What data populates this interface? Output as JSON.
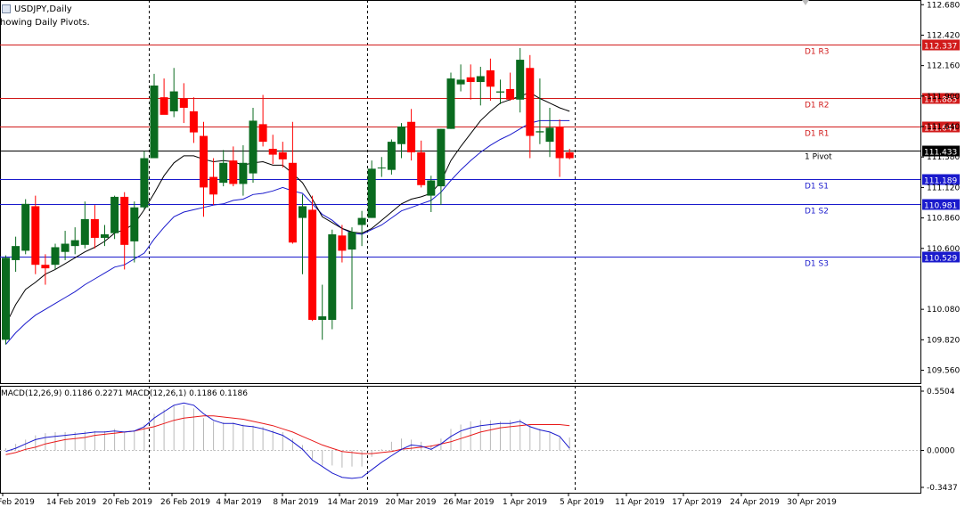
{
  "symbol_label": "USDJPY,Daily",
  "indicator_note": "howing Daily Pivots.",
  "colors": {
    "bull": "#0a6b1f",
    "bear": "#ff0000",
    "pivot_resistance": "#d11a1a",
    "pivot_support": "#1a1acc",
    "pivot_main": "#000000",
    "ma_fast": "#000000",
    "ma_slow": "#1a1acc",
    "macd_line": "#1a1acc",
    "signal_line": "#e81a1a",
    "hist": "#b8b8b8"
  },
  "price_axis_labels": [
    "112.680",
    "112.420",
    "112.160",
    "111.900",
    "111.640",
    "111.380",
    "111.120",
    "110.860",
    "110.600",
    "110.080",
    "109.820",
    "109.560"
  ],
  "macd_axis_labels": [
    "0.5504",
    "0.0000",
    "-0.3437"
  ],
  "macd_label": "MACD(12,26,9) 0.1186 0.2271 MACD(12,26,1) 0.1186 0.1186",
  "date_labels": [
    "Feb 2019",
    "14 Feb 2019",
    "20 Feb 2019",
    "26 Feb 2019",
    "4 Mar 2019",
    "8 Mar 2019",
    "14 Mar 2019",
    "20 Mar 2019",
    "26 Mar 2019",
    "1 Apr 2019",
    "5 Apr 2019",
    "11 Apr 2019",
    "17 Apr 2019",
    "24 Apr 2019",
    "30 Apr 2019"
  ],
  "chart_data": {
    "type": "candlestick",
    "title": "USDJPY,Daily",
    "ylim": [
      109.45,
      112.72
    ],
    "candles": [
      {
        "o": 109.82,
        "h": 110.54,
        "l": 109.78,
        "c": 110.52
      },
      {
        "o": 110.5,
        "h": 110.7,
        "l": 110.4,
        "c": 110.62
      },
      {
        "o": 110.58,
        "h": 111.02,
        "l": 110.55,
        "c": 110.98
      },
      {
        "o": 110.96,
        "h": 111.05,
        "l": 110.38,
        "c": 110.46
      },
      {
        "o": 110.46,
        "h": 110.55,
        "l": 110.29,
        "c": 110.43
      },
      {
        "o": 110.46,
        "h": 110.64,
        "l": 110.42,
        "c": 110.61
      },
      {
        "o": 110.57,
        "h": 110.75,
        "l": 110.5,
        "c": 110.64
      },
      {
        "o": 110.62,
        "h": 110.78,
        "l": 110.55,
        "c": 110.67
      },
      {
        "o": 110.63,
        "h": 111.0,
        "l": 110.6,
        "c": 110.85
      },
      {
        "o": 110.85,
        "h": 110.97,
        "l": 110.6,
        "c": 110.69
      },
      {
        "o": 110.69,
        "h": 110.8,
        "l": 110.62,
        "c": 110.72
      },
      {
        "o": 110.73,
        "h": 111.05,
        "l": 110.68,
        "c": 111.04
      },
      {
        "o": 111.04,
        "h": 111.08,
        "l": 110.42,
        "c": 110.63
      },
      {
        "o": 110.66,
        "h": 111.0,
        "l": 110.48,
        "c": 110.95
      },
      {
        "o": 110.95,
        "h": 111.43,
        "l": 110.93,
        "c": 111.37
      },
      {
        "o": 111.37,
        "h": 112.09,
        "l": 111.37,
        "c": 111.99
      },
      {
        "o": 111.89,
        "h": 112.05,
        "l": 111.75,
        "c": 111.74
      },
      {
        "o": 111.77,
        "h": 112.14,
        "l": 111.72,
        "c": 111.94
      },
      {
        "o": 111.88,
        "h": 112.01,
        "l": 111.67,
        "c": 111.8
      },
      {
        "o": 111.77,
        "h": 111.89,
        "l": 111.5,
        "c": 111.59
      },
      {
        "o": 111.56,
        "h": 111.68,
        "l": 110.87,
        "c": 111.12
      },
      {
        "o": 111.21,
        "h": 111.37,
        "l": 110.97,
        "c": 111.06
      },
      {
        "o": 111.16,
        "h": 111.44,
        "l": 111.13,
        "c": 111.33
      },
      {
        "o": 111.35,
        "h": 111.47,
        "l": 111.13,
        "c": 111.15
      },
      {
        "o": 111.15,
        "h": 111.48,
        "l": 111.05,
        "c": 111.33
      },
      {
        "o": 111.24,
        "h": 111.8,
        "l": 111.16,
        "c": 111.69
      },
      {
        "o": 111.66,
        "h": 111.91,
        "l": 111.47,
        "c": 111.51
      },
      {
        "o": 111.45,
        "h": 111.57,
        "l": 111.32,
        "c": 111.4
      },
      {
        "o": 111.42,
        "h": 111.51,
        "l": 111.29,
        "c": 111.36
      },
      {
        "o": 111.33,
        "h": 111.68,
        "l": 110.64,
        "c": 110.65
      },
      {
        "o": 110.86,
        "h": 111.06,
        "l": 110.38,
        "c": 110.96
      },
      {
        "o": 110.93,
        "h": 111.05,
        "l": 109.98,
        "c": 109.99
      },
      {
        "o": 109.99,
        "h": 110.29,
        "l": 109.82,
        "c": 110.02
      },
      {
        "o": 109.99,
        "h": 110.76,
        "l": 109.91,
        "c": 110.72
      },
      {
        "o": 110.71,
        "h": 110.8,
        "l": 110.48,
        "c": 110.58
      },
      {
        "o": 110.59,
        "h": 110.78,
        "l": 110.08,
        "c": 110.74
      },
      {
        "o": 110.8,
        "h": 110.92,
        "l": 110.62,
        "c": 110.86
      },
      {
        "o": 110.86,
        "h": 111.35,
        "l": 110.86,
        "c": 111.28
      },
      {
        "o": 111.29,
        "h": 111.38,
        "l": 111.21,
        "c": 111.29
      },
      {
        "o": 111.27,
        "h": 111.53,
        "l": 111.23,
        "c": 111.51
      },
      {
        "o": 111.49,
        "h": 111.67,
        "l": 111.37,
        "c": 111.64
      },
      {
        "o": 111.68,
        "h": 111.79,
        "l": 111.35,
        "c": 111.42
      },
      {
        "o": 111.42,
        "h": 111.52,
        "l": 111.12,
        "c": 111.14
      },
      {
        "o": 111.05,
        "h": 111.22,
        "l": 110.91,
        "c": 111.18
      },
      {
        "o": 111.13,
        "h": 111.62,
        "l": 110.97,
        "c": 111.62
      },
      {
        "o": 111.62,
        "h": 112.1,
        "l": 111.62,
        "c": 112.05
      },
      {
        "o": 112.0,
        "h": 112.17,
        "l": 111.94,
        "c": 112.04
      },
      {
        "o": 112.06,
        "h": 112.17,
        "l": 111.87,
        "c": 112.02
      },
      {
        "o": 112.02,
        "h": 112.15,
        "l": 111.82,
        "c": 112.07
      },
      {
        "o": 112.12,
        "h": 112.22,
        "l": 111.86,
        "c": 111.98
      },
      {
        "o": 111.93,
        "h": 112.04,
        "l": 111.83,
        "c": 111.94
      },
      {
        "o": 111.96,
        "h": 112.1,
        "l": 111.86,
        "c": 111.87
      },
      {
        "o": 111.87,
        "h": 112.31,
        "l": 111.76,
        "c": 112.21
      },
      {
        "o": 112.14,
        "h": 112.25,
        "l": 111.37,
        "c": 111.56
      },
      {
        "o": 111.59,
        "h": 112.05,
        "l": 111.49,
        "c": 111.6
      },
      {
        "o": 111.51,
        "h": 111.8,
        "l": 111.38,
        "c": 111.63
      },
      {
        "o": 111.64,
        "h": 111.7,
        "l": 111.21,
        "c": 111.37
      },
      {
        "o": 111.42,
        "h": 111.45,
        "l": 111.36,
        "c": 111.37
      }
    ],
    "ma_fast": [
      109.95,
      110.12,
      110.25,
      110.31,
      110.38,
      110.42,
      110.47,
      110.52,
      110.57,
      110.61,
      110.66,
      110.73,
      110.76,
      110.81,
      110.93,
      111.07,
      111.22,
      111.33,
      111.39,
      111.39,
      111.36,
      111.34,
      111.35,
      111.34,
      111.31,
      111.33,
      111.34,
      111.31,
      111.31,
      111.24,
      111.16,
      111.02,
      110.87,
      110.82,
      110.77,
      110.74,
      110.73,
      110.77,
      110.84,
      110.91,
      110.98,
      111.02,
      111.04,
      111.07,
      111.17,
      111.35,
      111.47,
      111.58,
      111.69,
      111.77,
      111.84,
      111.87,
      111.9,
      111.93,
      111.88,
      111.84,
      111.8,
      111.77
    ],
    "ma_slow": [
      109.78,
      109.88,
      109.96,
      110.03,
      110.08,
      110.13,
      110.18,
      110.23,
      110.29,
      110.34,
      110.39,
      110.44,
      110.46,
      110.51,
      110.56,
      110.68,
      110.78,
      110.87,
      110.91,
      110.93,
      110.95,
      110.97,
      110.98,
      111.01,
      111.02,
      111.06,
      111.07,
      111.09,
      111.12,
      111.09,
      111.07,
      110.98,
      110.89,
      110.84,
      110.77,
      110.73,
      110.72,
      110.76,
      110.8,
      110.86,
      110.92,
      110.95,
      110.98,
      111.01,
      111.08,
      111.18,
      111.27,
      111.35,
      111.42,
      111.48,
      111.53,
      111.57,
      111.62,
      111.67,
      111.69,
      111.69,
      111.69,
      111.69
    ],
    "pivots": [
      {
        "name": "D1 R3",
        "value": 112.337,
        "label": "112.337",
        "kind": "resistance"
      },
      {
        "name": "D1 R2",
        "value": 111.885,
        "label": "111.885",
        "kind": "resistance"
      },
      {
        "name": "D1 R1",
        "value": 111.641,
        "label": "111.641",
        "kind": "resistance"
      },
      {
        "name": "D1 Pivot",
        "value": 111.433,
        "label": "111.433",
        "kind": "main"
      },
      {
        "name": "D1 S1",
        "value": 111.189,
        "label": "111.189",
        "kind": "support"
      },
      {
        "name": "D1 S2",
        "value": 110.981,
        "label": "110.981",
        "kind": "support"
      },
      {
        "name": "D1 S3",
        "value": 110.529,
        "label": "110.529",
        "kind": "support"
      }
    ],
    "pivot_text_labels": [
      "D1 R3",
      "D1 R2",
      "D1 R1",
      "1 Pivot",
      "D1 S1",
      "D1 S2",
      "D1 S3"
    ],
    "separators_after_index": [
      14,
      36,
      57
    ],
    "macd": {
      "ylim": [
        -0.3437,
        0.5504
      ],
      "histogram": [
        0.02,
        0.06,
        0.1,
        0.14,
        0.16,
        0.17,
        0.17,
        0.17,
        0.18,
        0.18,
        0.18,
        0.2,
        0.17,
        0.18,
        0.24,
        0.34,
        0.38,
        0.42,
        0.42,
        0.39,
        0.3,
        0.27,
        0.26,
        0.26,
        0.24,
        0.23,
        0.22,
        0.19,
        0.17,
        0.11,
        0.05,
        -0.08,
        -0.14,
        -0.14,
        -0.16,
        -0.15,
        -0.15,
        -0.06,
        0.01,
        0.08,
        0.11,
        0.1,
        0.08,
        0.05,
        0.11,
        0.2,
        0.24,
        0.27,
        0.28,
        0.28,
        0.27,
        0.28,
        0.29,
        0.24,
        0.2,
        0.17,
        0.12,
        0.12
      ],
      "macd_line": [
        -0.01,
        0.02,
        0.06,
        0.1,
        0.12,
        0.13,
        0.14,
        0.15,
        0.16,
        0.17,
        0.17,
        0.18,
        0.17,
        0.18,
        0.22,
        0.3,
        0.36,
        0.42,
        0.44,
        0.42,
        0.34,
        0.28,
        0.25,
        0.25,
        0.23,
        0.22,
        0.2,
        0.17,
        0.14,
        0.08,
        0.01,
        -0.09,
        -0.15,
        -0.21,
        -0.25,
        -0.26,
        -0.25,
        -0.18,
        -0.11,
        -0.05,
        0.01,
        0.05,
        0.04,
        0.01,
        0.06,
        0.13,
        0.18,
        0.21,
        0.23,
        0.24,
        0.25,
        0.25,
        0.27,
        0.22,
        0.19,
        0.17,
        0.13,
        0.02
      ],
      "signal_line": [
        -0.04,
        -0.02,
        0.01,
        0.03,
        0.06,
        0.08,
        0.1,
        0.11,
        0.12,
        0.14,
        0.15,
        0.16,
        0.17,
        0.18,
        0.2,
        0.22,
        0.25,
        0.28,
        0.3,
        0.31,
        0.32,
        0.32,
        0.31,
        0.3,
        0.29,
        0.27,
        0.25,
        0.23,
        0.2,
        0.17,
        0.13,
        0.09,
        0.05,
        0.02,
        -0.01,
        -0.02,
        -0.03,
        -0.03,
        -0.02,
        -0.01,
        0.01,
        0.02,
        0.03,
        0.04,
        0.06,
        0.08,
        0.11,
        0.14,
        0.17,
        0.19,
        0.21,
        0.22,
        0.23,
        0.24,
        0.24,
        0.24,
        0.24,
        0.23
      ]
    }
  }
}
